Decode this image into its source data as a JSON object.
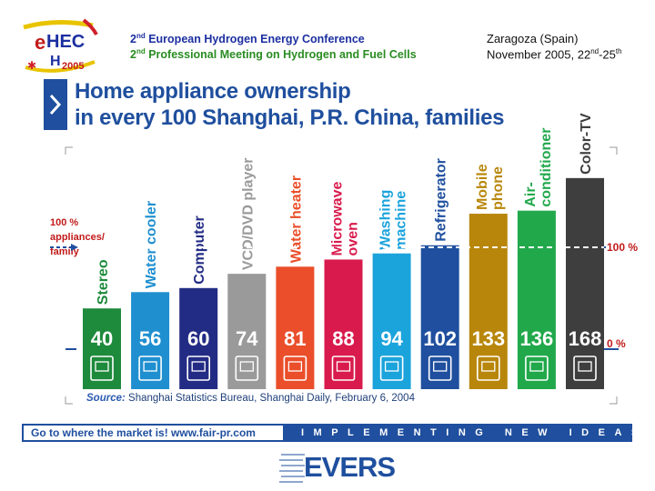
{
  "header": {
    "logo_text": "eHEC 2005",
    "conference_line1_ord": "2",
    "conference_line1_sup": "nd",
    "conference_line1": " European Hydrogen Energy Conference",
    "conference_line2_ord": "2",
    "conference_line2_sup": "nd",
    "conference_line2": " Professional Meeting on Hydrogen and Fuel Cells",
    "place": "Zaragoza (Spain)",
    "date_prefix": "November 2005, 22",
    "date_sup1": "nd",
    "date_mid": "-25",
    "date_sup2": "th"
  },
  "title": {
    "line1": "Home appliance ownership",
    "line2": "in every 100 Shanghai, P.R. China, families"
  },
  "chart_data": {
    "type": "bar",
    "categories": [
      "Stereo",
      "Water cooler",
      "Computer",
      "VCD/DVD player",
      "Water heater",
      "Microwave oven",
      "Washing machine",
      "Refrigerator",
      "Mobile phone",
      "Air-conditioner",
      "Color-TV"
    ],
    "label_lines": [
      [
        "Stereo"
      ],
      [
        "Water cooler"
      ],
      [
        "Computer"
      ],
      [
        "VCD/DVD player"
      ],
      [
        "Water heater"
      ],
      [
        "Microwave",
        "oven"
      ],
      [
        "Washing",
        "machine"
      ],
      [
        "Refrigerator"
      ],
      [
        "Mobile",
        "phone"
      ],
      [
        "Air-",
        "conditioner"
      ],
      [
        "Color-TV"
      ]
    ],
    "values": [
      40,
      56,
      60,
      74,
      81,
      88,
      94,
      102,
      133,
      136,
      168
    ],
    "colors": [
      "#1e8a3c",
      "#1f8fd0",
      "#232c84",
      "#9a9a9a",
      "#ea4e2a",
      "#d91a4c",
      "#1ba3dc",
      "#1f4f9e",
      "#b8860b",
      "#21a84b",
      "#3e3e3e"
    ],
    "icons": [
      "stereo-icon",
      "water-cooler-icon",
      "computer-icon",
      "vcd-player-icon",
      "water-heater-icon",
      "microwave-icon",
      "washing-machine-icon",
      "refrigerator-icon",
      "mobile-phone-icon",
      "air-conditioner-icon",
      "color-tv-icon"
    ],
    "reference_line": 100,
    "left_annotation": [
      "100 %",
      "appliances/",
      "family"
    ],
    "right_labels": [
      "100 %",
      "0 %"
    ],
    "ylim": [
      0,
      175
    ]
  },
  "source": {
    "label": "Source:",
    "text": " Shanghai Statistics Bureau, Shanghai Daily, February 6, 2004"
  },
  "footer": {
    "left": "Go to where the market is!   www.fair-pr.com",
    "right": "IMPLEMENTING NEW IDEAS",
    "brand": "EVERS"
  }
}
